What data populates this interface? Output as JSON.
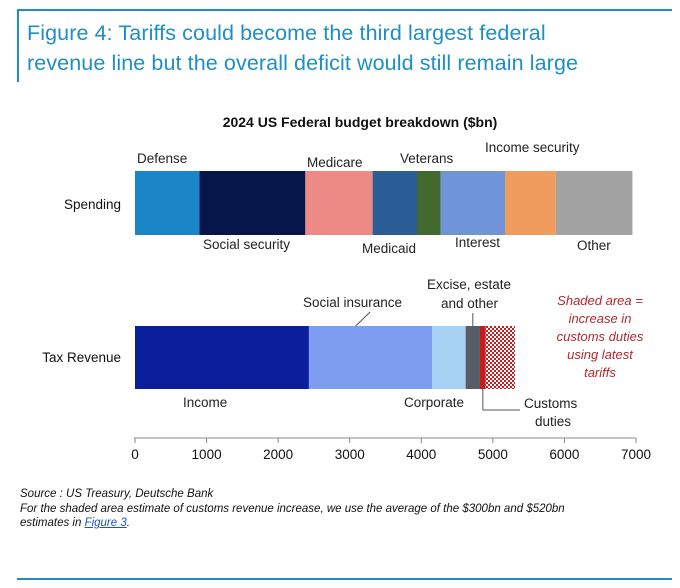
{
  "figure": {
    "title_line1": "Figure 4: Tariffs could become the third largest federal",
    "title_line2": "revenue line but the overall deficit would still remain large",
    "accent_color": "#1f8ec4"
  },
  "chart_data": {
    "type": "bar",
    "orientation": "horizontal",
    "stacked": true,
    "title": "2024 US Federal budget breakdown ($bn)",
    "xlim": [
      0,
      7000
    ],
    "xticks": [
      0,
      1000,
      2000,
      3000,
      4000,
      5000,
      6000,
      7000
    ],
    "grid": false,
    "categories": [
      "Spending",
      "Tax Revenue"
    ],
    "series": [
      {
        "category": "Spending",
        "segments": [
          {
            "name": "Defense",
            "value": 900,
            "color": "#1a86c7"
          },
          {
            "name": "Social security",
            "value": 1480,
            "color": "#07164a"
          },
          {
            "name": "Medicare",
            "value": 940,
            "color": "#ee8a86"
          },
          {
            "name": "Medicaid",
            "value": 620,
            "color": "#2a5d95"
          },
          {
            "name": "Veterans",
            "value": 330,
            "color": "#426a2e"
          },
          {
            "name": "Interest",
            "value": 900,
            "color": "#6f94d8"
          },
          {
            "name": "Income security",
            "value": 710,
            "color": "#f09c5e"
          },
          {
            "name": "Other",
            "value": 1070,
            "color": "#a3a3a3"
          }
        ]
      },
      {
        "category": "Tax Revenue",
        "segments": [
          {
            "name": "Income",
            "value": 2430,
            "color": "#0b1e9c"
          },
          {
            "name": "Social insurance",
            "value": 1720,
            "color": "#7e9cf0"
          },
          {
            "name": "Corporate",
            "value": 470,
            "color": "#a7d2f3"
          },
          {
            "name": "Excise, estate and other",
            "value": 200,
            "color": "#575c66"
          },
          {
            "name": "Customs duties",
            "value": 80,
            "color": "#cc1919"
          },
          {
            "name": "Shaded area",
            "value": 410,
            "color": "#cc1919",
            "hatched": true
          }
        ]
      }
    ],
    "labels": {
      "defense": "Defense",
      "social_security": "Social security",
      "medicare": "Medicare",
      "medicaid": "Medicaid",
      "veterans": "Veterans",
      "interest": "Interest",
      "income_security": "Income security",
      "other": "Other",
      "social_insurance": "Social insurance",
      "excise_1": "Excise, estate",
      "excise_2": "and other",
      "income": "Income",
      "corporate": "Corporate",
      "customs_1": "Customs",
      "customs_2": "duties"
    },
    "annotation": {
      "lines": [
        "Shaded area =",
        "increase in",
        "customs duties",
        "using latest",
        "tariffs"
      ],
      "color": "#b3282d"
    }
  },
  "source": {
    "line1": "Source : US Treasury, Deutsche Bank",
    "line2": "For the shaded area estimate of customs revenue increase, we use the average of the $300bn and $520bn",
    "line3_prefix": "estimates in ",
    "line3_link": "Figure 3",
    "line3_suffix": "."
  }
}
